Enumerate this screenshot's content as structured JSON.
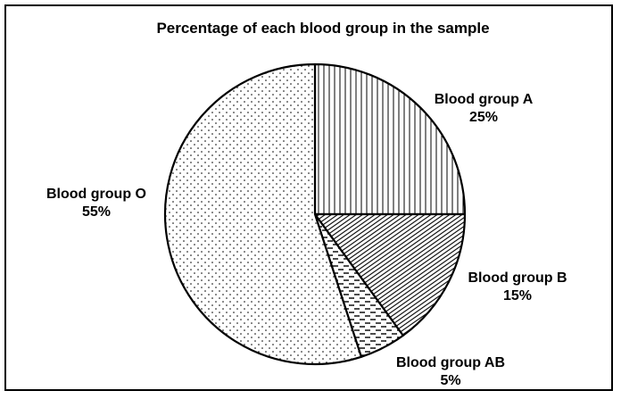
{
  "chart_data": {
    "type": "pie",
    "title": "Percentage of each blood group in the sample",
    "slices": [
      {
        "label": "Blood group A",
        "value": 25,
        "value_label": "25%",
        "pattern": "vertical-lines"
      },
      {
        "label": "Blood group B",
        "value": 15,
        "value_label": "15%",
        "pattern": "diagonal-hatch"
      },
      {
        "label": "Blood group AB",
        "value": 5,
        "value_label": "5%",
        "pattern": "dashes"
      },
      {
        "label": "Blood group O",
        "value": 55,
        "value_label": "55%",
        "pattern": "dots"
      }
    ],
    "start": "12 o'clock",
    "direction": "clockwise",
    "legend": "none",
    "colors": {
      "stroke": "#000000",
      "fill": "#ffffff"
    }
  }
}
